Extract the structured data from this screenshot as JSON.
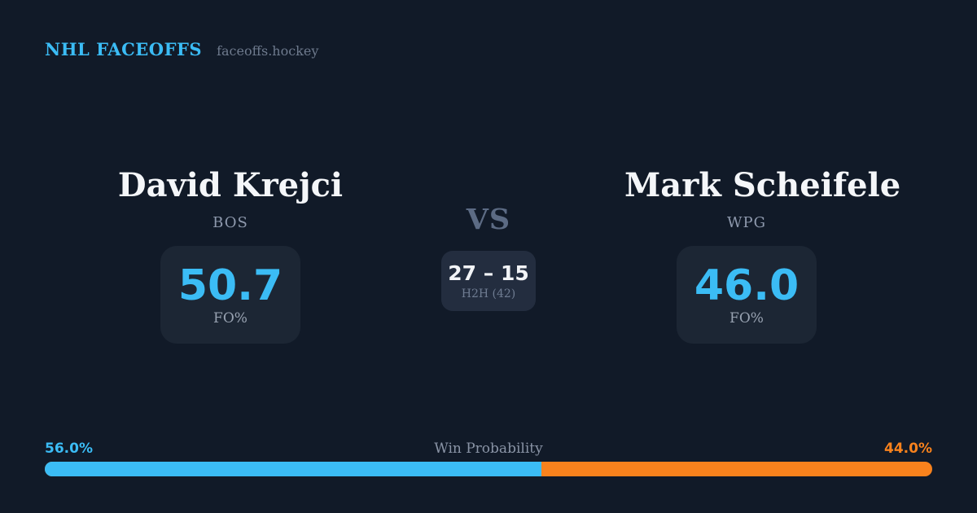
{
  "header": {
    "brand": "NHL FACEOFFS",
    "site": "faceoffs.hockey"
  },
  "accent": {
    "blue": "#3bbcf5",
    "orange": "#f8821d",
    "background": "#111a28",
    "card": "#1c2634",
    "chip": "#232d3f"
  },
  "players": {
    "left": {
      "name": "David Krejci",
      "team": "BOS",
      "stat_value": "50.7",
      "stat_label": "FO%"
    },
    "right": {
      "name": "Mark Scheifele",
      "team": "WPG",
      "stat_value": "46.0",
      "stat_label": "FO%"
    }
  },
  "center": {
    "vs_label": "VS",
    "h2h_score": "27 – 15",
    "h2h_label": "H2H (42)"
  },
  "win_probability": {
    "title": "Win Probability",
    "left_label": "56.0%",
    "right_label": "44.0%",
    "left_pct": 56.0,
    "right_pct": 44.0
  }
}
